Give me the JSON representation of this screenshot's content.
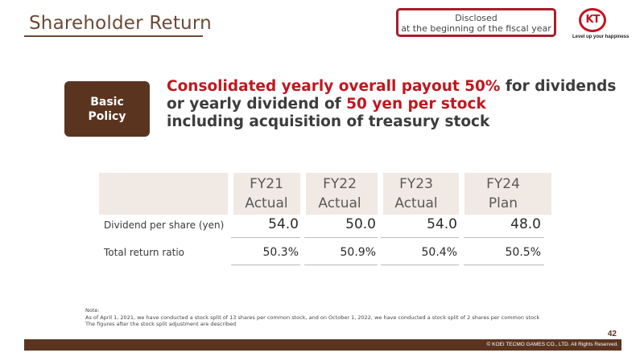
{
  "header": {
    "title": "Shareholder Return",
    "disclosed_line1": "Disclosed",
    "disclosed_line2": "at the beginning of the fiscal year",
    "logo_text": "KT",
    "logo_tagline": "Level up your happiness"
  },
  "policy": {
    "label_line1": "Basic",
    "label_line2": "Policy",
    "line1_red": "Consolidated yearly overall payout 50%",
    "line1_rest": " for dividends",
    "line2_pre": "or yearly dividend of ",
    "line2_red": "50 yen per stock",
    "line3": "including acquisition of treasury stock"
  },
  "table": {
    "columns": [
      {
        "year": "FY21",
        "kind": "Actual"
      },
      {
        "year": "FY22",
        "kind": "Actual"
      },
      {
        "year": "FY23",
        "kind": "Actual"
      },
      {
        "year": "FY24",
        "kind": "Plan"
      }
    ],
    "rows": [
      {
        "label": "Dividend per share (yen)",
        "values": [
          "54.0",
          "50.0",
          "54.0",
          "48.0"
        ]
      },
      {
        "label": "Total return ratio",
        "values": [
          "50.3%",
          "50.9%",
          "50.4%",
          "50.5%"
        ]
      }
    ]
  },
  "note": {
    "line1": "Note:",
    "line2": "As of April 1, 2021, we have conducted a stock split of 13 shares per common stock, and on October 1, 2022, we have conducted a stock split of 2 shares per common stock",
    "line3": "The figures after the stock split adjustment are described"
  },
  "footer": {
    "page_number": "42",
    "copyright": "© KOEI TECMO GAMES CO., LTD. All Rights Reserved."
  },
  "colors": {
    "brand_brown": "#5b3420",
    "accent_red": "#c0171f",
    "header_band": "#f0e9e4"
  }
}
